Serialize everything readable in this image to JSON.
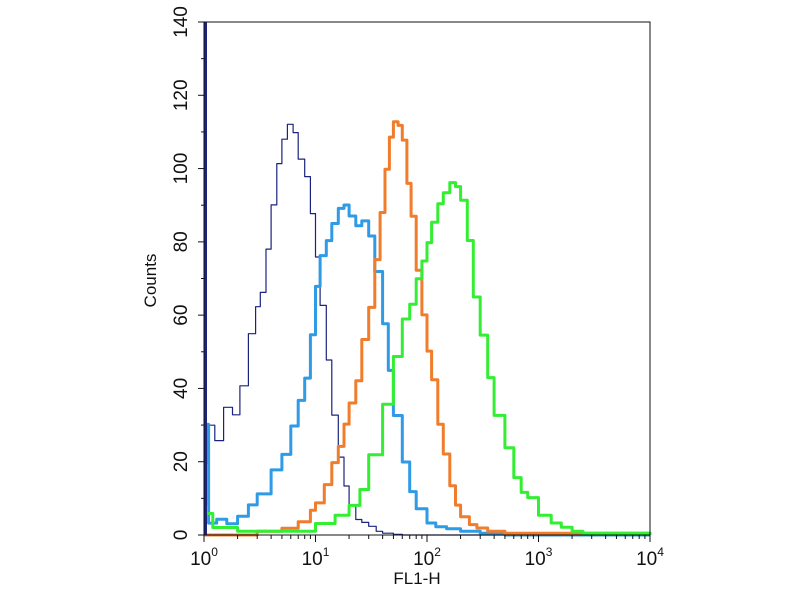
{
  "chart_data": {
    "type": "line",
    "title": "",
    "xlabel": "FL1-H",
    "ylabel": "Counts",
    "x_scale": "log10",
    "xlim": [
      1,
      10000
    ],
    "ylim": [
      0,
      140
    ],
    "x_ticks": [
      {
        "base": "10",
        "exp": "0"
      },
      {
        "base": "10",
        "exp": "1"
      },
      {
        "base": "10",
        "exp": "2"
      },
      {
        "base": "10",
        "exp": "3"
      },
      {
        "base": "10",
        "exp": "4"
      }
    ],
    "y_ticks": [
      "0",
      "20",
      "40",
      "60",
      "80",
      "100",
      "120",
      "140"
    ],
    "y_tick_values": [
      0,
      20,
      40,
      60,
      80,
      100,
      120,
      140
    ],
    "grid": false,
    "legend": false,
    "series": [
      {
        "color": "#1a237e",
        "stroke": "thin",
        "x": [
          1,
          1.1,
          1.25,
          1.5,
          1.8,
          2.1,
          2.5,
          2.9,
          3.2,
          3.6,
          4,
          4.5,
          5,
          5.6,
          6.3,
          7,
          8,
          9,
          10,
          11,
          12.5,
          14,
          16,
          18,
          20,
          23,
          26,
          30,
          35,
          40,
          50,
          60,
          10000
        ],
        "y": [
          20,
          30,
          26,
          35,
          33,
          41,
          55,
          62,
          66,
          78,
          90,
          101,
          108,
          112,
          110,
          103,
          98,
          88,
          76,
          63,
          48,
          33,
          21,
          13,
          8,
          4,
          3,
          2,
          1,
          0.5,
          0.2,
          0,
          0
        ]
      },
      {
        "color": "#2f9ae6",
        "stroke": "thick",
        "x": [
          1,
          1.05,
          1.1,
          1.3,
          1.6,
          2,
          2.5,
          3,
          4,
          5,
          6,
          7,
          8,
          9,
          10,
          11,
          12.5,
          14,
          16,
          18,
          20,
          23,
          26,
          30,
          34,
          40,
          45,
          50,
          60,
          70,
          80,
          100,
          120,
          150,
          200,
          300,
          500,
          10000
        ],
        "y": [
          20,
          30,
          3,
          4,
          3,
          5,
          8,
          11,
          18,
          22,
          30,
          37,
          43,
          55,
          68,
          76,
          80,
          85,
          89,
          90,
          87,
          84,
          86,
          82,
          72,
          58,
          45,
          33,
          20,
          12,
          7,
          3,
          2,
          1.5,
          1,
          0.5,
          0,
          0
        ]
      },
      {
        "color": "#f07d2c",
        "stroke": "thick",
        "x": [
          1,
          3,
          5,
          7,
          9,
          10,
          12,
          14,
          16,
          18,
          20,
          23,
          26,
          30,
          34,
          38,
          42,
          46,
          50,
          55,
          60,
          66,
          72,
          80,
          90,
          100,
          110,
          125,
          140,
          160,
          180,
          200,
          240,
          280,
          350,
          500,
          10000
        ],
        "y": [
          0,
          1,
          2,
          4,
          7,
          9,
          14,
          20,
          24,
          30,
          36,
          42,
          53,
          62,
          75,
          88,
          100,
          109,
          113,
          112,
          108,
          96,
          87,
          72,
          60,
          50,
          42,
          30,
          22,
          13,
          8,
          5,
          3,
          2,
          1,
          0.5,
          0
        ]
      },
      {
        "color": "#33ee33",
        "stroke": "thick",
        "x": [
          1,
          1.05,
          1.2,
          2,
          5,
          10,
          15,
          20,
          25,
          30,
          40,
          50,
          60,
          70,
          80,
          90,
          100,
          110,
          125,
          140,
          160,
          180,
          200,
          230,
          260,
          300,
          350,
          400,
          500,
          600,
          700,
          800,
          1000,
          1300,
          1600,
          2000,
          2500,
          10000
        ],
        "y": [
          8,
          6,
          2,
          1,
          1,
          3,
          5,
          8,
          12,
          22,
          36,
          49,
          59,
          63,
          70,
          75,
          80,
          85,
          90,
          93,
          96,
          95,
          91,
          80,
          65,
          55,
          43,
          33,
          24,
          16,
          12,
          10,
          5,
          3,
          2,
          1,
          0.5,
          0
        ]
      }
    ]
  }
}
